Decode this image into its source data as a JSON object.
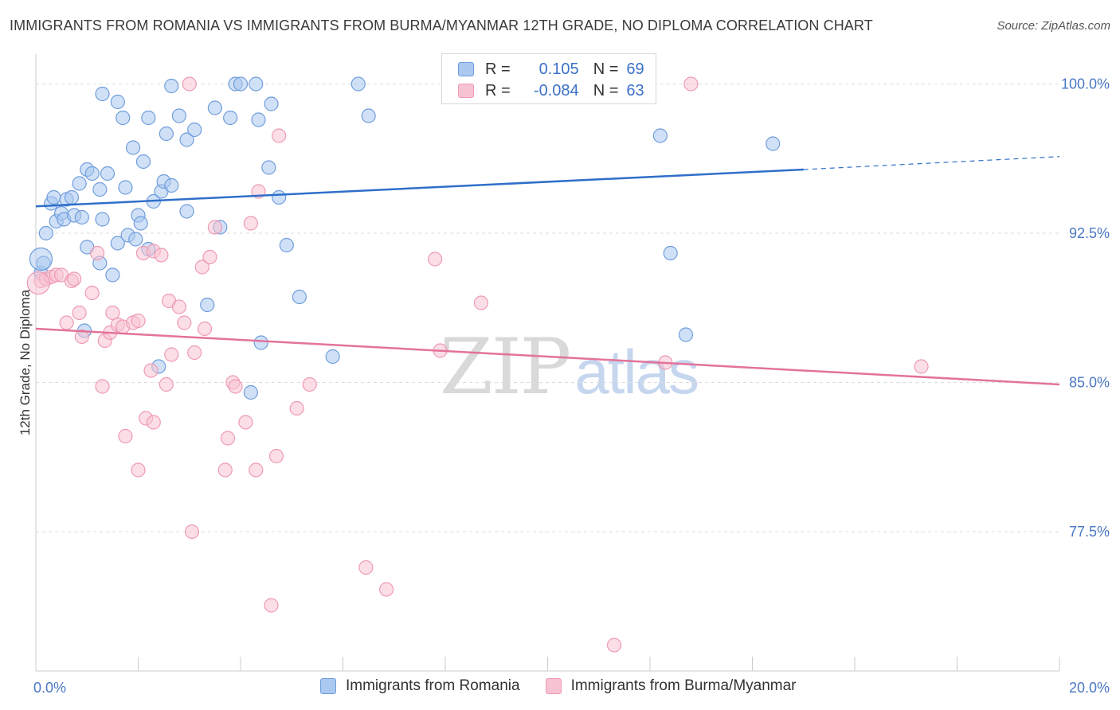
{
  "title": "IMMIGRANTS FROM ROMANIA VS IMMIGRANTS FROM BURMA/MYANMAR 12TH GRADE, NO DIPLOMA CORRELATION CHART",
  "source": "Source: ZipAtlas.com",
  "watermark": {
    "zip": "ZIP",
    "atlas": "atlas"
  },
  "legend": {
    "r_label": "R =",
    "n_label": "N =",
    "series": [
      {
        "r": "0.105",
        "n": "69"
      },
      {
        "r": "-0.084",
        "n": "63"
      }
    ]
  },
  "colors": {
    "romania_fill": "#aac8f0",
    "romania_stroke": "#6f9ddc",
    "romania_line": "#2f6fc9",
    "burma_fill": "#f7c2d2",
    "burma_stroke": "#ee9ab4",
    "burma_line": "#e3739a",
    "axis_text": "#4a78c4",
    "grid": "#dddddd"
  },
  "chart_data": {
    "type": "scatter",
    "title": "IMMIGRANTS FROM ROMANIA VS IMMIGRANTS FROM BURMA/MYANMAR 12TH GRADE, NO DIPLOMA CORRELATION CHART",
    "xlabel": "",
    "ylabel": "12th Grade, No Diploma",
    "xlim": [
      0,
      20
    ],
    "ylim": [
      70.5,
      101.5
    ],
    "x_tick_labels": [
      {
        "value": 0,
        "label": "0.0%"
      },
      {
        "value": 20,
        "label": "20.0%"
      }
    ],
    "y_tick_labels": [
      {
        "value": 100,
        "label": "100.0%"
      },
      {
        "value": 92.5,
        "label": "92.5%"
      },
      {
        "value": 85,
        "label": "85.0%"
      },
      {
        "value": 77.5,
        "label": "77.5%"
      }
    ],
    "series": [
      {
        "name": "Immigrants from Romania",
        "r": 0.105,
        "n": 69,
        "trend": {
          "x0": 0,
          "y0": 93.85,
          "x1": 15.0,
          "y1": 95.7,
          "dash_to_x": 20,
          "dash_to_y": 96.35
        },
        "points": [
          [
            0.1,
            90.5
          ],
          [
            0.15,
            91.0
          ],
          [
            0.2,
            92.5
          ],
          [
            0.3,
            94.0
          ],
          [
            0.35,
            94.3
          ],
          [
            0.4,
            93.1
          ],
          [
            0.5,
            93.5
          ],
          [
            0.55,
            93.2
          ],
          [
            0.6,
            94.2
          ],
          [
            0.7,
            94.3
          ],
          [
            0.75,
            93.4
          ],
          [
            0.85,
            95.0
          ],
          [
            0.9,
            93.3
          ],
          [
            1.0,
            95.7
          ],
          [
            1.0,
            91.8
          ],
          [
            1.1,
            95.5
          ],
          [
            1.25,
            94.7
          ],
          [
            1.25,
            91.0
          ],
          [
            1.3,
            93.2
          ],
          [
            1.4,
            95.5
          ],
          [
            1.5,
            90.4
          ],
          [
            1.6,
            92.0
          ],
          [
            1.6,
            99.1
          ],
          [
            1.7,
            98.3
          ],
          [
            1.75,
            94.8
          ],
          [
            1.8,
            92.4
          ],
          [
            1.9,
            96.8
          ],
          [
            1.95,
            92.2
          ],
          [
            2.0,
            93.4
          ],
          [
            2.05,
            93.0
          ],
          [
            2.1,
            96.1
          ],
          [
            2.2,
            91.7
          ],
          [
            2.2,
            98.3
          ],
          [
            2.3,
            94.1
          ],
          [
            2.4,
            85.8
          ],
          [
            2.45,
            94.6
          ],
          [
            2.5,
            95.1
          ],
          [
            2.55,
            97.5
          ],
          [
            2.65,
            94.9
          ],
          [
            2.8,
            98.4
          ],
          [
            2.95,
            93.6
          ],
          [
            2.95,
            97.2
          ],
          [
            3.1,
            97.7
          ],
          [
            3.35,
            88.9
          ],
          [
            3.5,
            98.8
          ],
          [
            3.6,
            92.8
          ],
          [
            3.8,
            98.3
          ],
          [
            3.9,
            100.0
          ],
          [
            4.0,
            100.0
          ],
          [
            4.2,
            84.5
          ],
          [
            4.3,
            100.0
          ],
          [
            4.35,
            98.2
          ],
          [
            4.4,
            87.0
          ],
          [
            4.55,
            95.8
          ],
          [
            4.6,
            99.0
          ],
          [
            4.75,
            94.3
          ],
          [
            4.9,
            91.9
          ],
          [
            5.15,
            89.3
          ],
          [
            5.8,
            86.3
          ],
          [
            6.3,
            100.0
          ],
          [
            6.5,
            98.4
          ],
          [
            8.9,
            100.0
          ],
          [
            12.2,
            97.4
          ],
          [
            12.4,
            91.5
          ],
          [
            12.7,
            87.4
          ],
          [
            14.4,
            97.0
          ],
          [
            0.95,
            87.6
          ],
          [
            1.3,
            99.5
          ],
          [
            2.65,
            99.9
          ]
        ]
      },
      {
        "name": "Immigrants from Burma/Myanmar",
        "r": -0.084,
        "n": 63,
        "trend": {
          "x0": 0,
          "y0": 87.7,
          "x1": 20,
          "y1": 84.9
        },
        "points": [
          [
            0.1,
            90.1
          ],
          [
            0.2,
            90.2
          ],
          [
            0.3,
            90.3
          ],
          [
            0.4,
            90.4
          ],
          [
            0.5,
            90.4
          ],
          [
            0.6,
            88.0
          ],
          [
            0.7,
            90.1
          ],
          [
            0.75,
            90.2
          ],
          [
            0.85,
            88.5
          ],
          [
            0.9,
            87.3
          ],
          [
            1.1,
            89.5
          ],
          [
            1.2,
            91.5
          ],
          [
            1.3,
            84.8
          ],
          [
            1.35,
            87.1
          ],
          [
            1.45,
            87.5
          ],
          [
            1.5,
            88.5
          ],
          [
            1.6,
            87.9
          ],
          [
            1.7,
            87.8
          ],
          [
            1.75,
            82.3
          ],
          [
            1.9,
            88.0
          ],
          [
            2.0,
            88.1
          ],
          [
            2.0,
            80.6
          ],
          [
            2.1,
            91.5
          ],
          [
            2.15,
            83.2
          ],
          [
            2.25,
            85.6
          ],
          [
            2.3,
            91.6
          ],
          [
            2.3,
            83.0
          ],
          [
            2.45,
            91.4
          ],
          [
            2.55,
            84.9
          ],
          [
            2.6,
            89.1
          ],
          [
            2.65,
            86.4
          ],
          [
            2.8,
            88.8
          ],
          [
            2.9,
            88.0
          ],
          [
            3.0,
            100.0
          ],
          [
            3.05,
            77.5
          ],
          [
            3.1,
            86.5
          ],
          [
            3.25,
            90.8
          ],
          [
            3.3,
            87.7
          ],
          [
            3.4,
            91.3
          ],
          [
            3.5,
            92.8
          ],
          [
            3.7,
            80.6
          ],
          [
            3.75,
            82.2
          ],
          [
            3.85,
            85.0
          ],
          [
            3.9,
            84.8
          ],
          [
            4.1,
            83.0
          ],
          [
            4.2,
            93.0
          ],
          [
            4.3,
            80.6
          ],
          [
            4.35,
            94.6
          ],
          [
            4.6,
            73.8
          ],
          [
            4.7,
            81.3
          ],
          [
            4.75,
            97.4
          ],
          [
            5.1,
            83.7
          ],
          [
            5.35,
            84.9
          ],
          [
            6.45,
            75.7
          ],
          [
            6.85,
            74.6
          ],
          [
            7.8,
            91.2
          ],
          [
            7.9,
            86.6
          ],
          [
            8.7,
            89.0
          ],
          [
            11.3,
            71.8
          ],
          [
            12.3,
            86.0
          ],
          [
            12.8,
            100.0
          ],
          [
            17.3,
            85.8
          ],
          [
            9.8,
            100.0
          ]
        ]
      }
    ],
    "legend_items": [
      "Immigrants from Romania",
      "Immigrants from Burma/Myanmar"
    ]
  }
}
